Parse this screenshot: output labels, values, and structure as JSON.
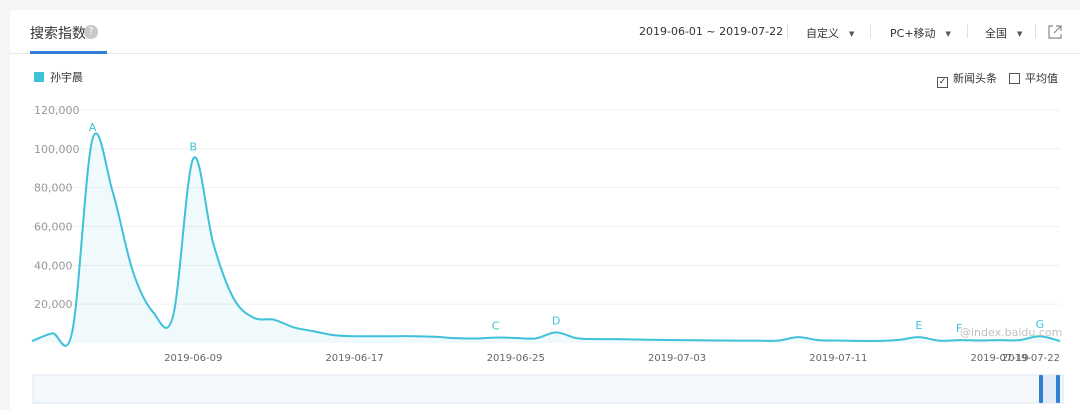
{
  "header": {
    "title": "搜索指数",
    "help_icon": "question-circle-icon",
    "date_range": "2019-06-01 ~ 2019-07-22",
    "mode_label": "自定义",
    "device_label": "PC+移动",
    "region_label": "全国",
    "export_icon": "external-link-icon"
  },
  "legend": {
    "label": "孙宇晨",
    "color": "#3ec1d9"
  },
  "options": {
    "news_label": "新闻头条",
    "news_checked": true,
    "avg_label": "平均值",
    "avg_checked": false
  },
  "watermark": "@index.baidu.com",
  "chart_data": {
    "type": "area",
    "series": [
      {
        "name": "孙宇晨",
        "x": [
          "2019-06-01",
          "2019-06-02",
          "2019-06-03",
          "2019-06-04",
          "2019-06-05",
          "2019-06-06",
          "2019-06-07",
          "2019-06-08",
          "2019-06-09",
          "2019-06-10",
          "2019-06-11",
          "2019-06-12",
          "2019-06-13",
          "2019-06-14",
          "2019-06-15",
          "2019-06-16",
          "2019-06-17",
          "2019-06-18",
          "2019-06-19",
          "2019-06-20",
          "2019-06-21",
          "2019-06-22",
          "2019-06-23",
          "2019-06-24",
          "2019-06-25",
          "2019-06-26",
          "2019-06-27",
          "2019-06-28",
          "2019-06-29",
          "2019-06-30",
          "2019-07-01",
          "2019-07-02",
          "2019-07-03",
          "2019-07-04",
          "2019-07-05",
          "2019-07-06",
          "2019-07-07",
          "2019-07-08",
          "2019-07-09",
          "2019-07-10",
          "2019-07-11",
          "2019-07-12",
          "2019-07-13",
          "2019-07-14",
          "2019-07-15",
          "2019-07-16",
          "2019-07-17",
          "2019-07-18",
          "2019-07-19",
          "2019-07-20",
          "2019-07-21",
          "2019-07-22"
        ],
        "values": [
          1000,
          5000,
          6000,
          105000,
          78000,
          37000,
          16000,
          14000,
          95000,
          51000,
          23000,
          13000,
          12000,
          8000,
          6000,
          4000,
          3500,
          3500,
          3500,
          3500,
          3200,
          2500,
          2300,
          2800,
          2600,
          2400,
          5500,
          2500,
          2000,
          2000,
          1800,
          1600,
          1500,
          1400,
          1300,
          1200,
          1200,
          1200,
          3000,
          1500,
          1300,
          1100,
          1100,
          1600,
          3000,
          1200,
          1500,
          1300,
          1500,
          1500,
          3500,
          1000
        ]
      }
    ],
    "yticks": [
      "120,000",
      "100,000",
      "80,000",
      "60,000",
      "40,000",
      "20,000"
    ],
    "ylim": [
      0,
      120000
    ],
    "xtick_labels": [
      "2019-06-09",
      "2019-06-17",
      "2019-06-25",
      "2019-07-03",
      "2019-07-11",
      "2019-07-19",
      "2019-07-22"
    ],
    "annotations": [
      {
        "label": "A",
        "date": "2019-06-04"
      },
      {
        "label": "B",
        "date": "2019-06-09"
      },
      {
        "label": "C",
        "date": "2019-06-24"
      },
      {
        "label": "D",
        "date": "2019-06-27"
      },
      {
        "label": "E",
        "date": "2019-07-15"
      },
      {
        "label": "F",
        "date": "2019-07-17"
      },
      {
        "label": "G",
        "date": "2019-07-21"
      }
    ],
    "grid": true
  }
}
